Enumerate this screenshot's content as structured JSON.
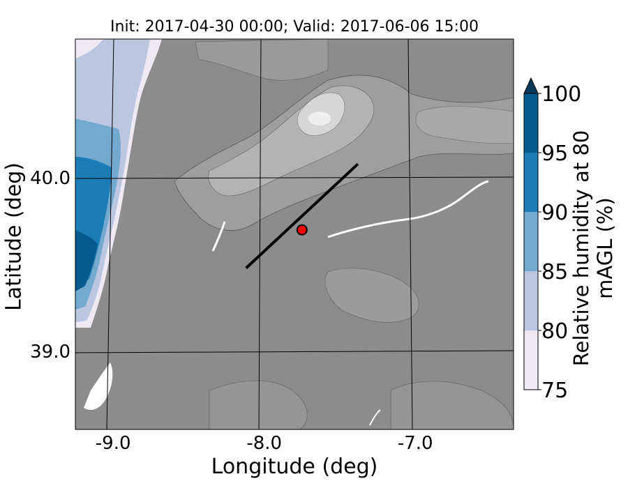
{
  "title": "Init: 2017-04-30 00:00; Valid: 2017-06-06 15:00",
  "xlabel": "Longitude (deg)",
  "ylabel": "Latitude (deg)",
  "colorbar": {
    "label": "Relative humidity at 80 mAGL (%)",
    "ticks": [
      75,
      80,
      85,
      90,
      95,
      100
    ],
    "colors": [
      "#efe9f3",
      "#bbc7e1",
      "#74a9cf",
      "#1b7cb6",
      "#045a8d"
    ],
    "extend_color": "#023858"
  },
  "chart_data": {
    "type": "map-contour",
    "xlim": [
      -9.25,
      -6.35
    ],
    "ylim": [
      38.55,
      40.8
    ],
    "x_ticks": [
      -9.0,
      -8.0,
      -7.0
    ],
    "x_tick_labels": [
      "-9.0",
      "-8.0",
      "-7.0"
    ],
    "y_ticks": [
      39.0,
      40.0
    ],
    "y_tick_labels": [
      "39.0",
      "40.0"
    ],
    "variable": "Relative humidity at 80 mAGL",
    "units": "%",
    "levels": [
      75,
      80,
      85,
      90,
      95,
      100
    ],
    "terrain_shading": true,
    "transect": {
      "start": [
        -8.12,
        39.48
      ],
      "end": [
        -7.38,
        40.08
      ]
    },
    "station": {
      "lon": -7.75,
      "lat": 39.7,
      "color": "#ff0000"
    }
  }
}
